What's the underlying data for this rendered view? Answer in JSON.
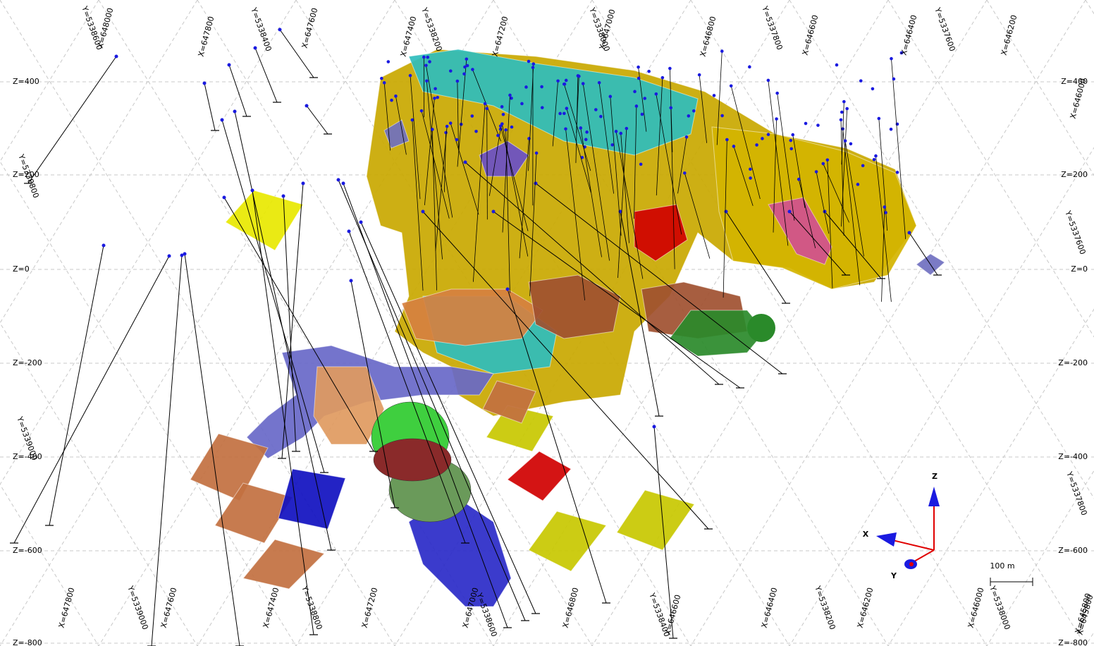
{
  "z_labels_left": [
    "Z=400",
    "Z=200",
    "Z=0",
    "Z=-200",
    "Z=-400",
    "Z=-600",
    "Z=-800"
  ],
  "z_labels_right": [
    "Z=400",
    "Z=200",
    "Z=0",
    "Z=-200",
    "Z=-400",
    "Z=-600",
    "Z=-800"
  ],
  "grid_labels": [
    "Y=5338600",
    "X=648000",
    "X=647800",
    "Y=5338400",
    "X=647600",
    "X=647400",
    "Y=5338200",
    "X=647200",
    "Y=5338000",
    "X=647000",
    "X=646800",
    "Y=5337800",
    "X=646600",
    "X=646400",
    "Y=5337600",
    "X=646200",
    "X=646000",
    "Y=5337600",
    "Y=5337800",
    "X=645800",
    "Y=5338800",
    "Y=5339000",
    "X=647800",
    "Y=5339000",
    "X=647600",
    "X=647400",
    "Y=5338800",
    "X=647200",
    "X=647000",
    "Y=5338600",
    "X=646800",
    "Y=5338400",
    "X=646600",
    "X=646400",
    "Y=5338200",
    "X=646200",
    "X=646000",
    "Y=5338000",
    "X=645800"
  ],
  "axes_triad": {
    "x": "X",
    "y": "Y",
    "z": "Z"
  },
  "scale_bar": "100 m"
}
